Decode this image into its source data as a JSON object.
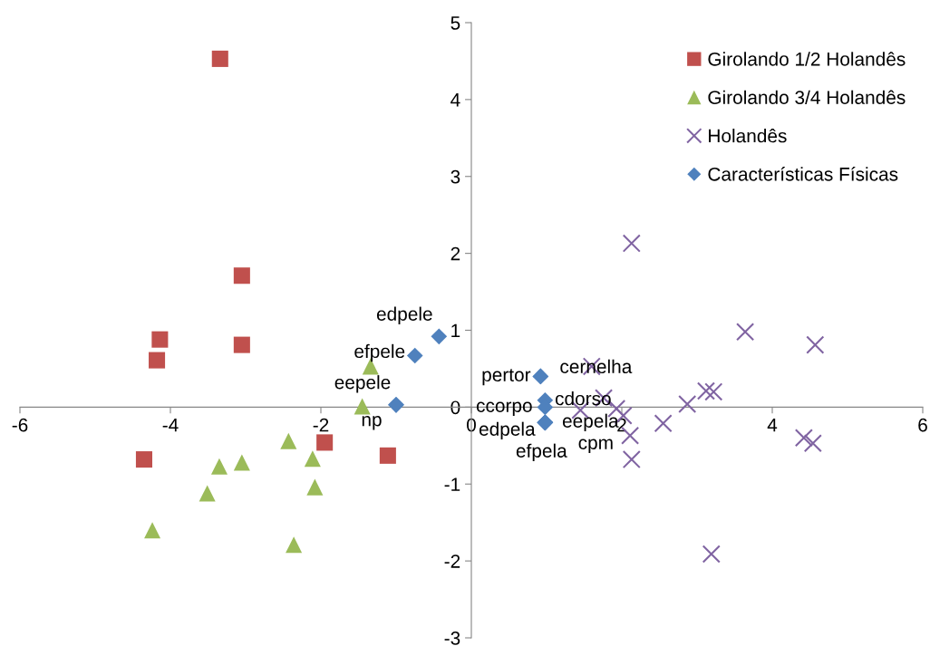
{
  "chart_data": {
    "type": "scatter",
    "xlim": [
      -6,
      6
    ],
    "ylim": [
      -3,
      5
    ],
    "xticks": [
      -6,
      -4,
      -2,
      0,
      2,
      4,
      6
    ],
    "yticks": [
      -3,
      -2,
      -1,
      0,
      1,
      2,
      3,
      4,
      5
    ],
    "grid": false,
    "legend": "top right",
    "series": [
      {
        "name": "Girolando 1/2 Holandês",
        "color": "#c0504d",
        "marker": "square",
        "x": [
          -3.34,
          -3.05,
          -4.14,
          -4.18,
          -3.05,
          -4.35,
          -1.95,
          -1.11
        ],
        "values": [
          4.53,
          1.71,
          0.88,
          0.61,
          0.81,
          -0.68,
          -0.46,
          -0.63
        ]
      },
      {
        "name": "Girolando 3/4 Holandês",
        "color": "#9bbb59",
        "marker": "triangle",
        "x": [
          -1.34,
          -1.45,
          -2.43,
          -2.11,
          -3.35,
          -3.05,
          -3.51,
          -4.24,
          -2.08,
          -2.36
        ],
        "values": [
          0.53,
          0.01,
          -0.44,
          -0.67,
          -0.77,
          -0.72,
          -1.12,
          -1.6,
          -1.04,
          -1.79
        ]
      },
      {
        "name": "Holandês",
        "color": "#8064a2",
        "marker": "cross",
        "x": [
          2.13,
          3.64,
          4.57,
          1.6,
          1.76,
          1.45,
          1.93,
          2.02,
          2.11,
          2.13,
          2.55,
          2.87,
          3.12,
          3.22,
          4.42,
          4.54,
          3.19
        ],
        "values": [
          2.13,
          0.98,
          0.81,
          0.53,
          0.12,
          -0.04,
          -0.02,
          -0.11,
          -0.37,
          -0.68,
          -0.21,
          0.04,
          0.21,
          0.2,
          -0.4,
          -0.47,
          -1.91
        ]
      },
      {
        "name": "Características Físicas",
        "color": "#4f81bd",
        "marker": "diamond",
        "x": [
          -0.43,
          -0.75,
          -1.0,
          -1.0,
          0.92,
          0.92,
          0.98,
          0.98,
          0.98,
          0.98,
          0.98,
          0.98
        ],
        "values": [
          0.92,
          0.67,
          0.03,
          0.03,
          0.4,
          0.4,
          0.09,
          0.0,
          -0.2,
          -0.2,
          -0.2,
          -0.2
        ],
        "value_labels": [
          "edpele",
          "efpele",
          "eepele",
          "np",
          "pertor",
          "cernelha",
          "cdorso",
          "ccorpo",
          "eepela",
          "edpela",
          "efpela",
          "cpm"
        ]
      }
    ]
  }
}
